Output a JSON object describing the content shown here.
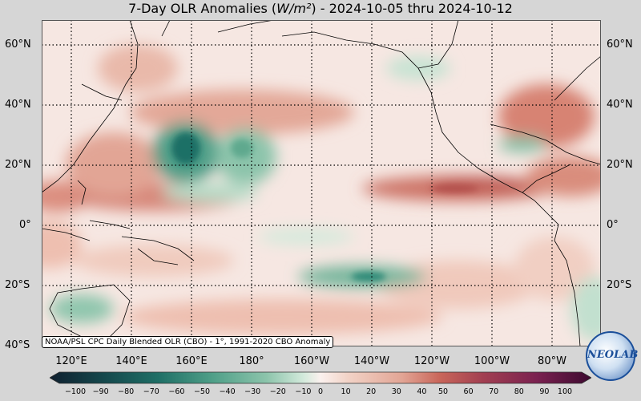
{
  "title": {
    "prefix": "7-Day OLR Anomalies (",
    "unit": "W/m²",
    "suffix": ") - 2024-10-05 thru 2024-10-12"
  },
  "lat_labels": [
    "60°N",
    "40°N",
    "20°N",
    "0°",
    "20°S",
    "40°S"
  ],
  "lon_labels": [
    "120°E",
    "140°E",
    "160°E",
    "180°",
    "160°W",
    "140°W",
    "120°W",
    "100°W",
    "80°W"
  ],
  "credit": "NOAA/PSL CPC Daily Blended OLR (CBO) - 1°, 1991-2020 CBO Anomaly",
  "colorbar": {
    "ticks": [
      "−100",
      "−90",
      "−80",
      "−70",
      "−60",
      "−50",
      "−40",
      "−30",
      "−20",
      "−10",
      "0",
      "10",
      "20",
      "30",
      "40",
      "50",
      "60",
      "70",
      "80",
      "90",
      "100"
    ],
    "colors": {
      "negative_strong": "#0f3b3f",
      "negative_mid": "#2f8a78",
      "negative_weak": "#b7dcc8",
      "neutral": "#fbf1ee",
      "positive_weak": "#efc2b2",
      "positive_mid": "#c9665a",
      "positive_strong": "#5e1145"
    }
  },
  "logo": {
    "text": "NEOLAB"
  }
}
